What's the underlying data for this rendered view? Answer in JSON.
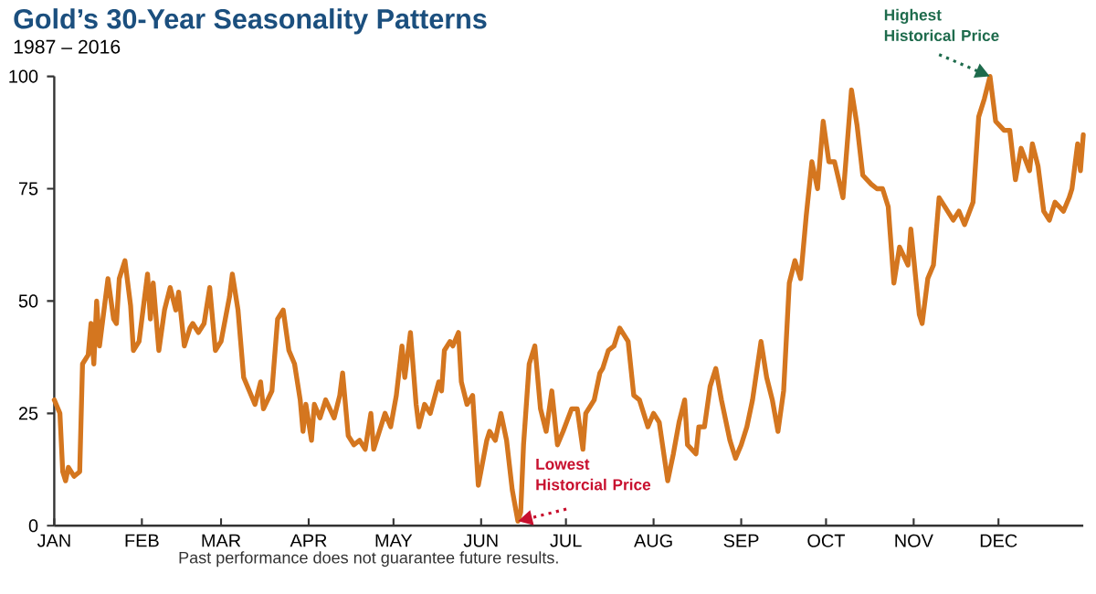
{
  "chart_data": {
    "type": "line",
    "title": "Gold’s 30-Year Seasonality Patterns",
    "subtitle": "1987 – 2016",
    "x": [
      "--01-01",
      "--01-03",
      "--01-04",
      "--01-05",
      "--01-06",
      "--01-08",
      "--01-10",
      "--01-11",
      "--01-13",
      "--01-14",
      "--01-15",
      "--01-16",
      "--01-17",
      "--01-20",
      "--01-22",
      "--01-23",
      "--01-24",
      "--01-26",
      "--01-28",
      "--01-29",
      "--01-31",
      "--02-03",
      "--02-04",
      "--02-05",
      "--02-07",
      "--02-09",
      "--02-11",
      "--02-13",
      "--02-14",
      "--02-16",
      "--02-18",
      "--02-19",
      "--02-21",
      "--02-23",
      "--02-25",
      "--02-27",
      "--03-01",
      "--03-04",
      "--03-05",
      "--03-07",
      "--03-09",
      "--03-13",
      "--03-15",
      "--03-16",
      "--03-19",
      "--03-21",
      "--03-23",
      "--03-25",
      "--03-27",
      "--03-29",
      "--03-30",
      "--03-31",
      "--04-02",
      "--04-03",
      "--04-05",
      "--04-07",
      "--04-10",
      "--04-12",
      "--04-13",
      "--04-15",
      "--04-17",
      "--04-19",
      "--04-21",
      "--04-23",
      "--04-24",
      "--04-26",
      "--04-28",
      "--04-30",
      "--05-02",
      "--05-04",
      "--05-05",
      "--05-07",
      "--05-09",
      "--05-10",
      "--05-12",
      "--05-14",
      "--05-17",
      "--05-18",
      "--05-19",
      "--05-21",
      "--05-22",
      "--05-24",
      "--05-25",
      "--05-27",
      "--05-29",
      "--05-31",
      "--06-03",
      "--06-04",
      "--06-06",
      "--06-08",
      "--06-10",
      "--06-12",
      "--06-14",
      "--06-15",
      "--06-16",
      "--06-18",
      "--06-20",
      "--06-22",
      "--06-24",
      "--06-26",
      "--06-28",
      "--06-30",
      "--07-03",
      "--07-05",
      "--07-07",
      "--07-08",
      "--07-11",
      "--07-13",
      "--07-14",
      "--07-16",
      "--07-18",
      "--07-20",
      "--07-23",
      "--07-25",
      "--07-27",
      "--07-30",
      "--08-01",
      "--08-03",
      "--08-06",
      "--08-08",
      "--08-10",
      "--08-12",
      "--08-13",
      "--08-16",
      "--08-17",
      "--08-19",
      "--08-21",
      "--08-23",
      "--08-25",
      "--08-28",
      "--08-30",
      "--09-01",
      "--09-03",
      "--09-05",
      "--09-08",
      "--09-10",
      "--09-12",
      "--09-14",
      "--09-16",
      "--09-18",
      "--09-20",
      "--09-22",
      "--09-24",
      "--09-26",
      "--09-28",
      "--09-30",
      "--10-02",
      "--10-04",
      "--10-07",
      "--10-10",
      "--10-12",
      "--10-14",
      "--10-17",
      "--10-19",
      "--10-21",
      "--10-23",
      "--10-25",
      "--10-27",
      "--10-30",
      "--10-31",
      "--11-03",
      "--11-04",
      "--11-06",
      "--11-08",
      "--11-10",
      "--11-12",
      "--11-15",
      "--11-17",
      "--11-19",
      "--11-22",
      "--11-24",
      "--11-26",
      "--11-28",
      "--11-30",
      "--12-03",
      "--12-05",
      "--12-07",
      "--12-09",
      "--12-12",
      "--12-13",
      "--12-15",
      "--12-17",
      "--12-19",
      "--12-21",
      "--12-24",
      "--12-26",
      "--12-27",
      "--12-29",
      "--12-30",
      "--12-31"
    ],
    "values": [
      28,
      25,
      12,
      10,
      13,
      11,
      12,
      36,
      38,
      45,
      36,
      50,
      40,
      55,
      46,
      45,
      55,
      59,
      49,
      39,
      41,
      56,
      46,
      54,
      39,
      48,
      53,
      48,
      52,
      40,
      44,
      45,
      43,
      45,
      53,
      39,
      41,
      51,
      56,
      48,
      33,
      27,
      32,
      26,
      30,
      46,
      48,
      39,
      36,
      28,
      21,
      27,
      19,
      27,
      24,
      28,
      24,
      29,
      34,
      20,
      18,
      19,
      17,
      25,
      17,
      21,
      25,
      22,
      29,
      40,
      33,
      43,
      27,
      22,
      27,
      25,
      32,
      30,
      39,
      41,
      40,
      43,
      32,
      27,
      29,
      9,
      19,
      21,
      19,
      25,
      19,
      8,
      1,
      3,
      18,
      36,
      40,
      26,
      21,
      30,
      18,
      21,
      26,
      26,
      17,
      25,
      28,
      34,
      35,
      39,
      40,
      44,
      41,
      29,
      28,
      22,
      25,
      23,
      10,
      16,
      23,
      28,
      18,
      16,
      22,
      22,
      31,
      35,
      28,
      19,
      15,
      18,
      22,
      28,
      41,
      33,
      28,
      21,
      30,
      54,
      59,
      55,
      69,
      81,
      75,
      90,
      81,
      81,
      73,
      97,
      89,
      78,
      76,
      75,
      75,
      71,
      54,
      62,
      58,
      66,
      47,
      45,
      55,
      58,
      73,
      71,
      68,
      70,
      67,
      72,
      91,
      95,
      100,
      90,
      88,
      88,
      77,
      84,
      79,
      85,
      80,
      70,
      68,
      72,
      70,
      73,
      75,
      85,
      79,
      87
    ],
    "color": "#d4761f",
    "line_style": "solid",
    "xlim": [
      "--01-01",
      "--12-31"
    ],
    "xticks": [
      {
        "value": "--01-01",
        "label": "JAN"
      },
      {
        "value": "--02-01",
        "label": "FEB"
      },
      {
        "value": "--03-01",
        "label": "MAR"
      },
      {
        "value": "--04-01",
        "label": "APR"
      },
      {
        "value": "--05-01",
        "label": "MAY"
      },
      {
        "value": "--06-01",
        "label": "JUN"
      },
      {
        "value": "--07-01",
        "label": "JUL"
      },
      {
        "value": "--08-01",
        "label": "AUG"
      },
      {
        "value": "--09-01",
        "label": "SEP"
      },
      {
        "value": "--10-01",
        "label": "OCT"
      },
      {
        "value": "--11-01",
        "label": "NOV"
      },
      {
        "value": "--12-01",
        "label": "DEC"
      }
    ],
    "ylim": [
      0,
      100
    ],
    "yticks": [
      0,
      25,
      50,
      75,
      100
    ],
    "annotations": [
      {
        "text": "Lowest Historcial Price",
        "x": "--06-14",
        "y": 1
      },
      {
        "text": "Highest Historical Price",
        "x": "--11-28",
        "y": 100
      },
      "Past performance does not guarantee future results."
    ]
  }
}
